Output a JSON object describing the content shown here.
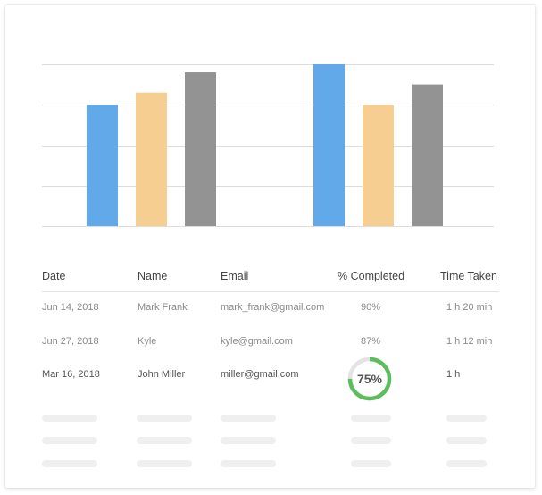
{
  "colors": {
    "blue": "#62A9E9",
    "yellow": "#F6CE92",
    "gray": "#939393",
    "progress_green": "#5CBD5C",
    "progress_track": "#E3E3E3",
    "gridline": "#DDDDDD",
    "skeleton": "#EFEFEF"
  },
  "chart_data": {
    "type": "bar",
    "categories": [
      "",
      ""
    ],
    "series": [
      {
        "color": "#62A9E9",
        "values": [
          3,
          4
        ]
      },
      {
        "color": "#F6CE92",
        "values": [
          3.3,
          3
        ]
      },
      {
        "color": "#939393",
        "values": [
          3.8,
          3.5
        ]
      }
    ],
    "ylim": [
      0,
      4
    ],
    "grid": true,
    "title": "",
    "xlabel": "",
    "ylabel": ""
  },
  "table": {
    "headers": [
      "Date",
      "Name",
      "Email",
      "% Completed",
      "Time Taken"
    ],
    "rows": [
      {
        "date": "Jun 14, 2018",
        "name": "Mark Frank",
        "email": "mark_frank@gmail.com",
        "completed": "90%",
        "time": "1 h 20 min"
      },
      {
        "date": "Jun 27, 2018",
        "name": "Kyle",
        "email": "kyle@gmail.com",
        "completed": "87%",
        "time": "1 h 12 min"
      },
      {
        "date": "Mar 16, 2018",
        "name": "John Miller",
        "email": "miller@gmail.com",
        "completed": "75%",
        "completed_fraction": 0.75,
        "time": "1 h"
      }
    ]
  }
}
